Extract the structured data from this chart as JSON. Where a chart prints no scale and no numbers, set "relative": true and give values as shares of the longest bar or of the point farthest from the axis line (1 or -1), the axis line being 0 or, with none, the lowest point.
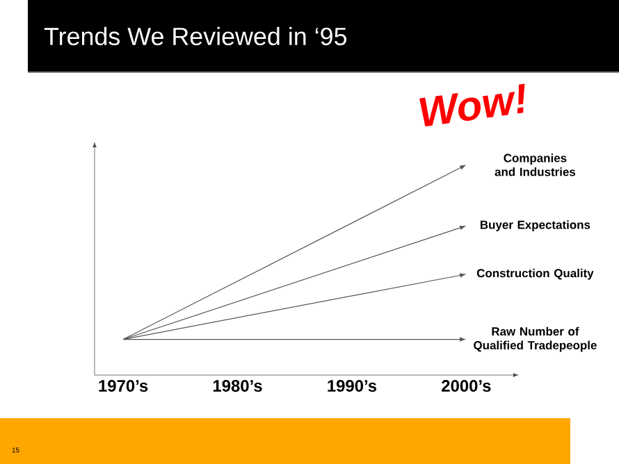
{
  "chart_data": {
    "type": "line",
    "relative": true,
    "title": "Trends We Reviewed in ‘95",
    "annotations": [
      "Wow!",
      "15"
    ],
    "categories": [
      "1970’s",
      "1980’s",
      "1990’s",
      "2000’s"
    ],
    "marker": "none",
    "line_style": "solid",
    "series": [
      {
        "name": "Companies and Industries",
        "color": "#555555",
        "values": [
          0.17,
          null,
          null,
          1
        ]
      },
      {
        "name": "Buyer Expectations",
        "color": "#555555",
        "values": [
          0.17,
          null,
          null,
          0.71
        ]
      },
      {
        "name": "Construction Quality",
        "color": "#555555",
        "values": [
          0.17,
          null,
          null,
          0.48
        ]
      },
      {
        "name": "Raw Number of Qualified Tradepeople",
        "color": "#555555",
        "values": [
          0.17,
          null,
          null,
          0.17
        ]
      }
    ]
  }
}
